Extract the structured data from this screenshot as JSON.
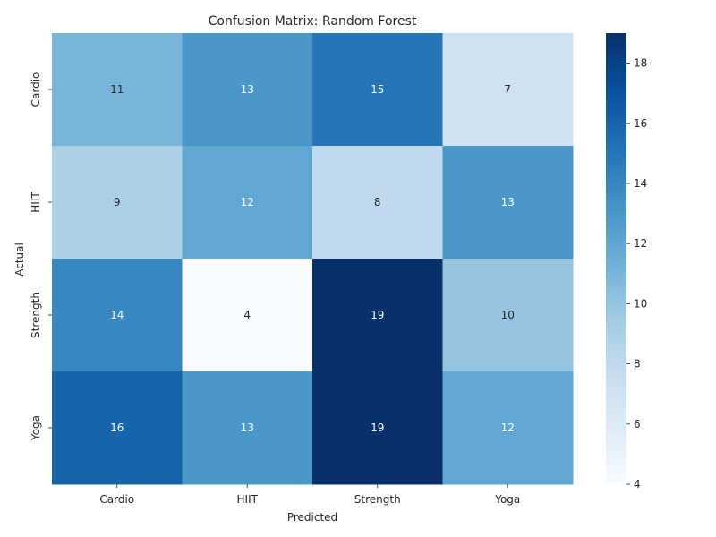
{
  "chart_data": {
    "type": "heatmap",
    "title": "Confusion Matrix: Random Forest",
    "xlabel": "Predicted",
    "ylabel": "Actual",
    "x_categories": [
      "Cardio",
      "HIIT",
      "Strength",
      "Yoga"
    ],
    "y_categories": [
      "Cardio",
      "HIIT",
      "Strength",
      "Yoga"
    ],
    "values": [
      [
        11,
        13,
        15,
        7
      ],
      [
        9,
        12,
        8,
        13
      ],
      [
        14,
        4,
        19,
        10
      ],
      [
        16,
        13,
        19,
        12
      ]
    ],
    "colormap": "Blues",
    "colorbar": {
      "min": 4,
      "max": 19,
      "ticks": [
        4,
        6,
        8,
        10,
        12,
        14,
        16,
        18
      ]
    }
  }
}
